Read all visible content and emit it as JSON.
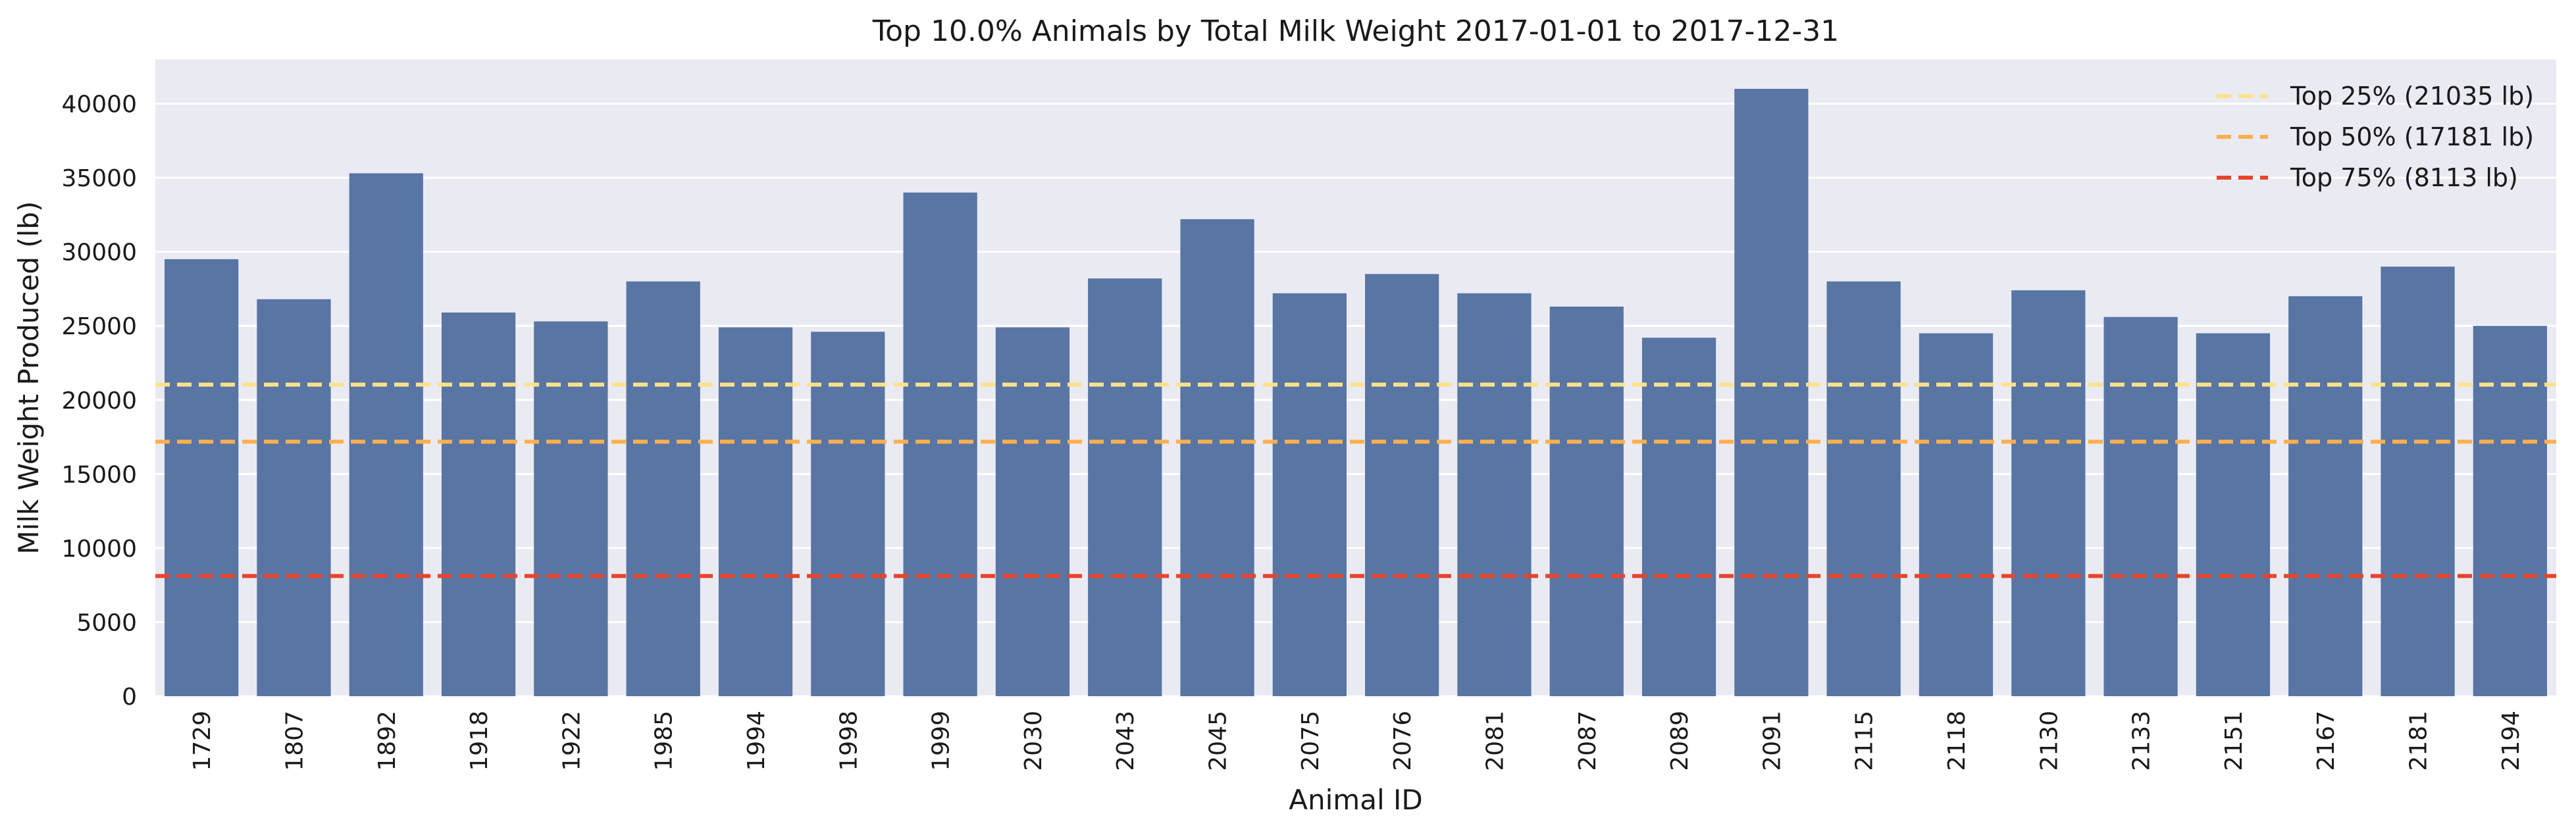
{
  "chart_data": {
    "type": "bar",
    "title": "Top 10.0% Animals by Total Milk Weight 2017-01-01 to 2017-12-31",
    "xlabel": "Animal ID",
    "ylabel": "Milk Weight Produced (lb)",
    "ylim": [
      0,
      43000
    ],
    "yticks": [
      0,
      5000,
      10000,
      15000,
      20000,
      25000,
      30000,
      35000,
      40000
    ],
    "grid": true,
    "legend_position": "top-right",
    "categories": [
      "1729",
      "1807",
      "1892",
      "1918",
      "1922",
      "1985",
      "1994",
      "1998",
      "1999",
      "2030",
      "2043",
      "2045",
      "2075",
      "2076",
      "2081",
      "2087",
      "2089",
      "2091",
      "2115",
      "2118",
      "2130",
      "2133",
      "2151",
      "2167",
      "2181",
      "2194"
    ],
    "values": [
      29500,
      26800,
      35300,
      25900,
      25300,
      28000,
      24900,
      24600,
      34000,
      24900,
      28200,
      32200,
      27200,
      28500,
      27200,
      26300,
      24200,
      41000,
      28000,
      24500,
      27400,
      25600,
      24500,
      27000,
      29000,
      25000
    ],
    "bar_color": "#5875a4",
    "reference_lines": [
      {
        "name": "Top 25% (21035 lb)",
        "value": 21035,
        "color": "#fde28a"
      },
      {
        "name": "Top 50% (17181 lb)",
        "value": 17181,
        "color": "#fbb04e"
      },
      {
        "name": "Top 75% (8113 lb)",
        "value": 8113,
        "color": "#e8442a"
      }
    ],
    "plot_background": "#eaeaf2",
    "grid_color": "#ffffff"
  }
}
